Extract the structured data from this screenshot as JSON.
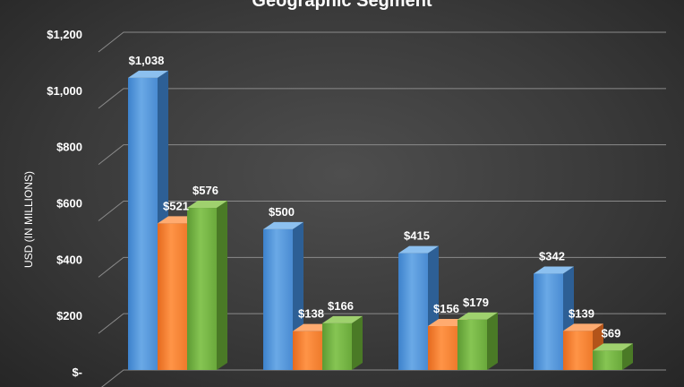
{
  "chart_data": {
    "type": "bar",
    "title": "Geographic  Segment",
    "ylabel": "USD (IN MILLIONS)",
    "xlabel": "",
    "ylim": [
      0,
      1200
    ],
    "yticks": [
      0,
      200,
      400,
      600,
      800,
      1000,
      1200
    ],
    "ytick_labels": [
      "$-",
      "$200",
      "$400",
      "$600",
      "$800",
      "$1,000",
      "$1,200"
    ],
    "categories": [
      "",
      "",
      "",
      ""
    ],
    "grid": true,
    "style": "3d-clustered-column",
    "series": [
      {
        "color": "#4f94d9",
        "values": [
          1038,
          500,
          415,
          342
        ],
        "labels": [
          "$1,038",
          "$500",
          "$415",
          "$342"
        ]
      },
      {
        "color": "#f07b2a",
        "values": [
          521,
          138,
          156,
          139
        ],
        "labels": [
          "$521",
          "$138",
          "$156",
          "$139"
        ]
      },
      {
        "color": "#6fae3e",
        "values": [
          576,
          166,
          179,
          69
        ],
        "labels": [
          "$576",
          "$166",
          "$179",
          "$69"
        ]
      }
    ]
  }
}
